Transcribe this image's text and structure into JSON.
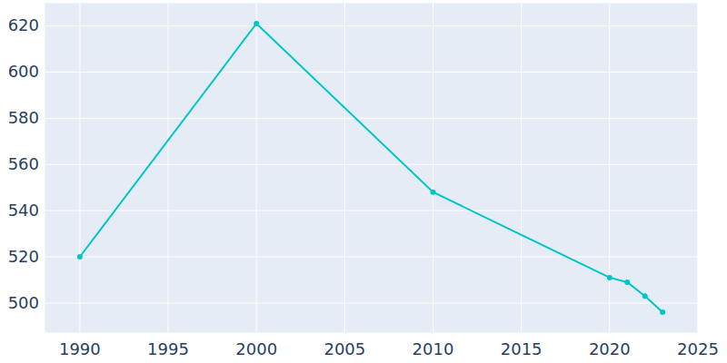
{
  "chart_data": {
    "type": "line",
    "x": [
      1990,
      2000,
      2010,
      2020,
      2021,
      2022,
      2023
    ],
    "values": [
      520,
      621,
      548,
      511,
      509,
      503,
      496
    ],
    "color": "#00c5c8",
    "marker": "circle",
    "xlim": [
      1988,
      2025
    ],
    "ylim": [
      487,
      630
    ],
    "xticks": [
      1990,
      1995,
      2000,
      2005,
      2010,
      2015,
      2020,
      2025
    ],
    "yticks": [
      500,
      520,
      540,
      560,
      580,
      600,
      620
    ],
    "grid": true
  }
}
